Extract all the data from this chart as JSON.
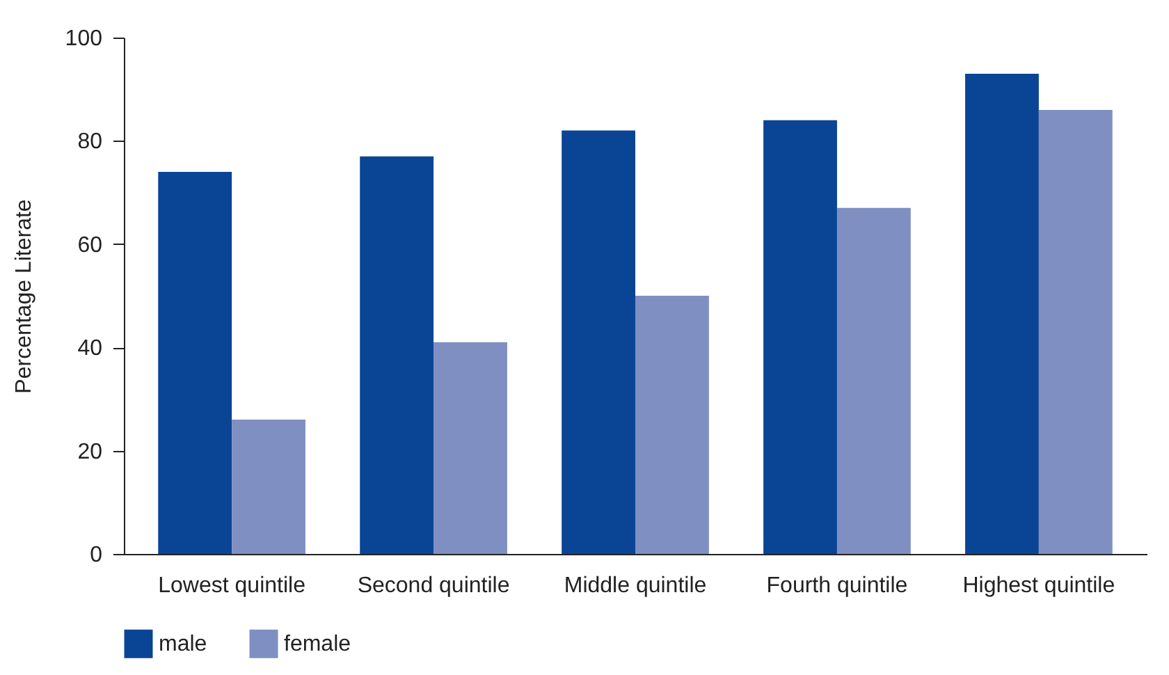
{
  "chart_data": {
    "type": "bar",
    "ylabel": "Percentage Literate",
    "categories": [
      "Lowest quintile",
      "Second quintile",
      "Middle quintile",
      "Fourth quintile",
      "Highest quintile"
    ],
    "series": [
      {
        "name": "male",
        "color": "#0a4595",
        "values": [
          74,
          77,
          82,
          84,
          93
        ]
      },
      {
        "name": "female",
        "color": "#7f8fc2",
        "values": [
          26,
          41,
          50,
          67,
          86
        ]
      }
    ],
    "ylim": [
      0,
      100
    ],
    "yticks": [
      0,
      20,
      40,
      60,
      80,
      100
    ],
    "grid": false,
    "legend": "bottom"
  }
}
